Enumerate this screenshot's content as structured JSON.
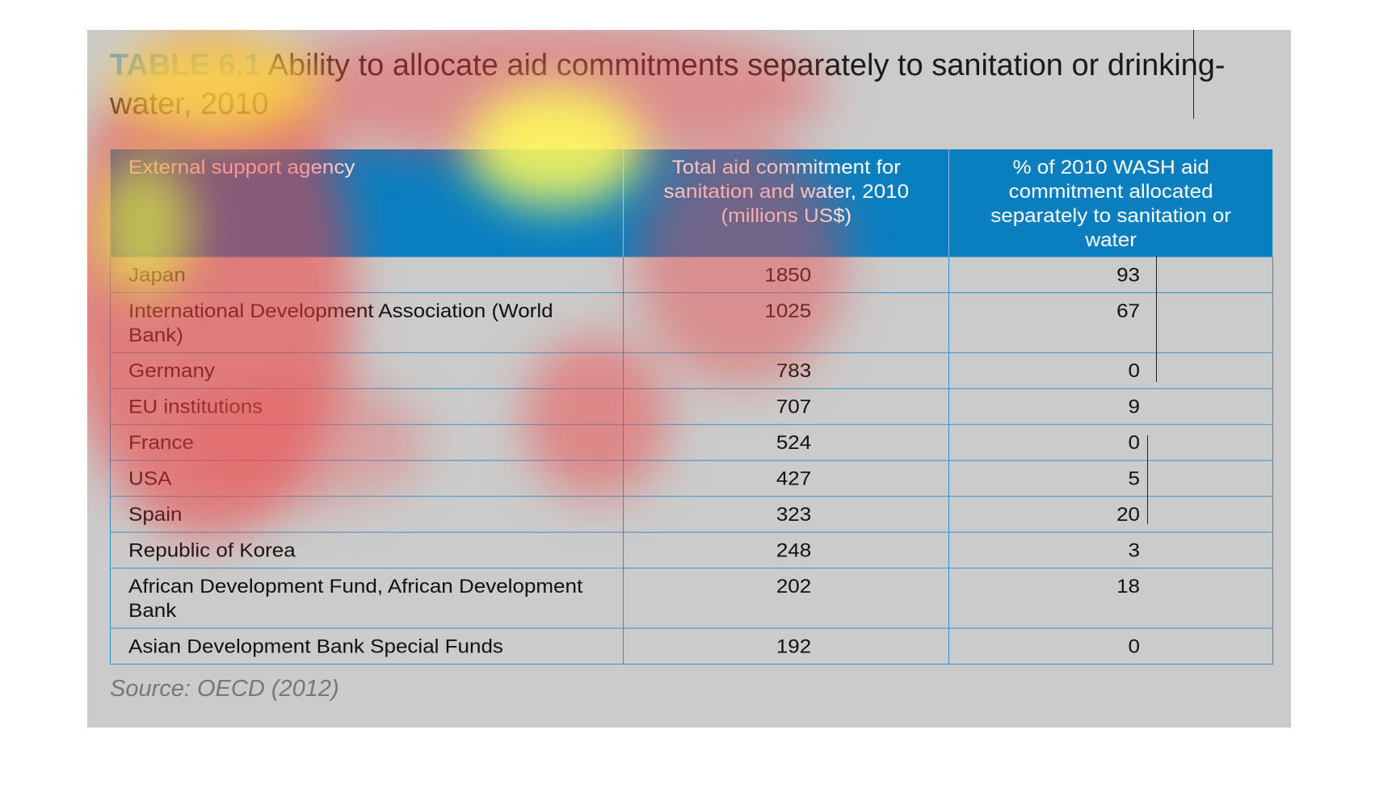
{
  "title": {
    "label": "TABLE 6.1",
    "text": " Ability to allocate aid commitments separately to sanitation or drinking-water, 2010"
  },
  "table": {
    "headers": [
      "External support agency",
      "Total aid commitment for sanitation and water, 2010 (millions US$)",
      "% of 2010 WASH aid commitment allocated separately to sanitation or water"
    ],
    "rows": [
      {
        "agency": "Japan",
        "total": "1850",
        "pct": "93"
      },
      {
        "agency": "International Development Association (World Bank)",
        "total": "1025",
        "pct": "67"
      },
      {
        "agency": "Germany",
        "total": "783",
        "pct": "0"
      },
      {
        "agency": "EU institutions",
        "total": "707",
        "pct": "9"
      },
      {
        "agency": "France",
        "total": "524",
        "pct": "0"
      },
      {
        "agency": "USA",
        "total": "427",
        "pct": "5"
      },
      {
        "agency": "Spain",
        "total": "323",
        "pct": "20"
      },
      {
        "agency": "Republic of Korea",
        "total": "248",
        "pct": "3"
      },
      {
        "agency": "African Development Fund, African Development Bank",
        "total": "202",
        "pct": "18"
      },
      {
        "agency": "Asian Development Bank Special Funds",
        "total": "192",
        "pct": "0"
      }
    ]
  },
  "source": "Source: OECD (2012)",
  "colors": {
    "panel_background": "#cbcbcb",
    "header_background": "#0a7fc0",
    "table_border": "#2e8fc4",
    "title_label": "#6aa0c8"
  }
}
